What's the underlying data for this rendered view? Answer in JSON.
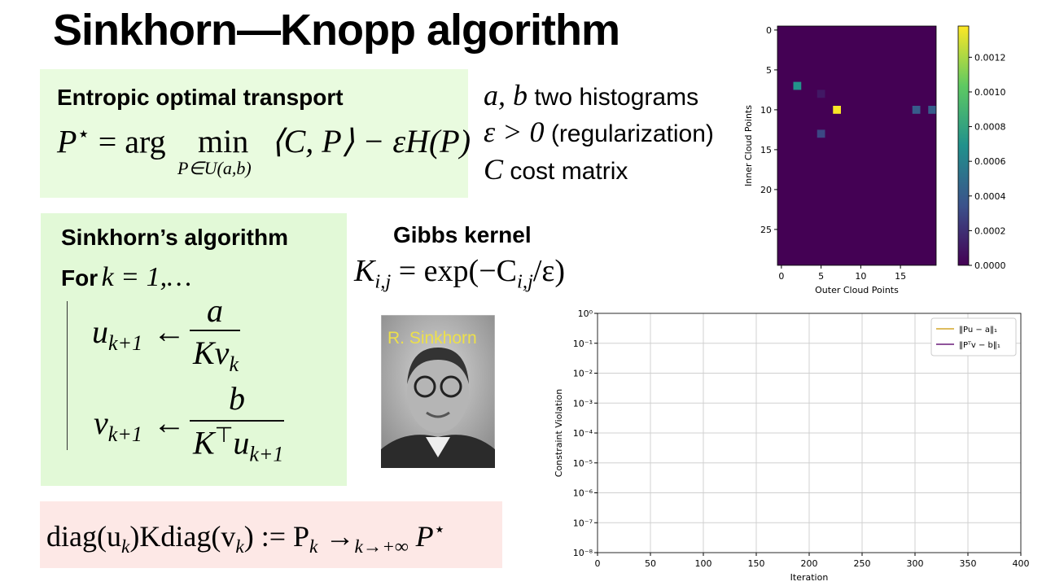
{
  "title": "Sinkhorn—Knopp algorithm",
  "entropic": {
    "heading": "Entropic optimal transport",
    "lhs": "P",
    "lhs_sup": "⋆",
    "eq": "= arg",
    "op": "min",
    "op_sub": "P∈U(a,b)",
    "rhs": "⟨C, P⟩ − εH(P)"
  },
  "notes": [
    {
      "math": "a, b",
      "text": "two histograms"
    },
    {
      "math": "ε > 0",
      "text": "(regularization)"
    },
    {
      "math": "C",
      "text": "cost matrix"
    }
  ],
  "algorithm": {
    "heading": "Sinkhorn’s algorithm",
    "for": "For",
    "loop": "k = 1,…",
    "u_update": {
      "var": "u",
      "sub": "k+1",
      "arrow": "←",
      "num": "a",
      "den": "Kv",
      "den_sub": "k"
    },
    "v_update": {
      "var": "v",
      "sub": "k+1",
      "arrow": "←",
      "num": "b",
      "den": "K",
      "den_sup": "⊤",
      "den_var": "u",
      "den_sub": "k+1"
    }
  },
  "gibbs": {
    "heading": "Gibbs kernel",
    "lhs": "K",
    "lhs_sub": "i,j",
    "rhs_a": "= exp(−C",
    "rhs_sub": "i,j",
    "rhs_b": "/ε)"
  },
  "photo": {
    "caption": "R. Sinkhorn"
  },
  "limit": {
    "a": "diag(u",
    "a_sub": "k",
    "b": ")Kdiag(v",
    "b_sub": "k",
    "c": ") := P",
    "c_sub": "k",
    "arrow": "→",
    "arrow_sub": "k→+∞",
    "d": "P",
    "d_sup": "⋆"
  },
  "chart_data": [
    {
      "type": "heatmap",
      "xlabel": "Outer Cloud Points",
      "ylabel": "Inner Cloud Points",
      "x": [
        2,
        5,
        7,
        5,
        17,
        19
      ],
      "y": [
        7,
        8,
        10,
        13,
        10,
        10
      ],
      "values": [
        0.0007,
        0.0001,
        0.00137,
        0.0003,
        0.0004,
        0.0004
      ],
      "xlim": [
        -0.5,
        19.5
      ],
      "ylim": [
        29.5,
        -0.5
      ],
      "xticks": [
        0,
        5,
        10,
        15
      ],
      "yticks": [
        0,
        5,
        10,
        15,
        20,
        25
      ],
      "clim": [
        0,
        0.00138
      ],
      "cticks": [
        {
          "value": 0,
          "label": "0.0000"
        },
        {
          "value": 0.0002,
          "label": "0.0002"
        },
        {
          "value": 0.0004,
          "label": "0.0004"
        },
        {
          "value": 0.0006,
          "label": "0.0006"
        },
        {
          "value": 0.0008,
          "label": "0.0008"
        },
        {
          "value": 0.001,
          "label": "0.0010"
        },
        {
          "value": 0.0012,
          "label": "0.0012"
        }
      ],
      "colormap": "viridis"
    },
    {
      "type": "line",
      "xlabel": "Iteration",
      "ylabel": "Constraint Violation",
      "x": [],
      "log_y": true,
      "grid": true,
      "legend": "upper right",
      "xlim": [
        0,
        400
      ],
      "xticks": [
        0,
        50,
        100,
        150,
        200,
        250,
        300,
        350,
        400
      ],
      "ylim": [
        1e-08,
        1
      ],
      "yticks": [
        {
          "value": 1e-08,
          "label": "10⁻⁸"
        },
        {
          "value": 1e-07,
          "label": "10⁻⁷"
        },
        {
          "value": 1e-06,
          "label": "10⁻⁶"
        },
        {
          "value": 1e-05,
          "label": "10⁻⁵"
        },
        {
          "value": 0.0001,
          "label": "10⁻⁴"
        },
        {
          "value": 0.001,
          "label": "10⁻³"
        },
        {
          "value": 0.01,
          "label": "10⁻²"
        },
        {
          "value": 0.1,
          "label": "10⁻¹"
        },
        {
          "value": 1,
          "label": "10⁰"
        }
      ],
      "series": [
        {
          "name": "‖Pu − a‖₁",
          "color": "#d4a62a",
          "values": []
        },
        {
          "name": "‖Pᵀv − b‖₁",
          "color": "#6a1b7a",
          "values": []
        }
      ]
    }
  ]
}
